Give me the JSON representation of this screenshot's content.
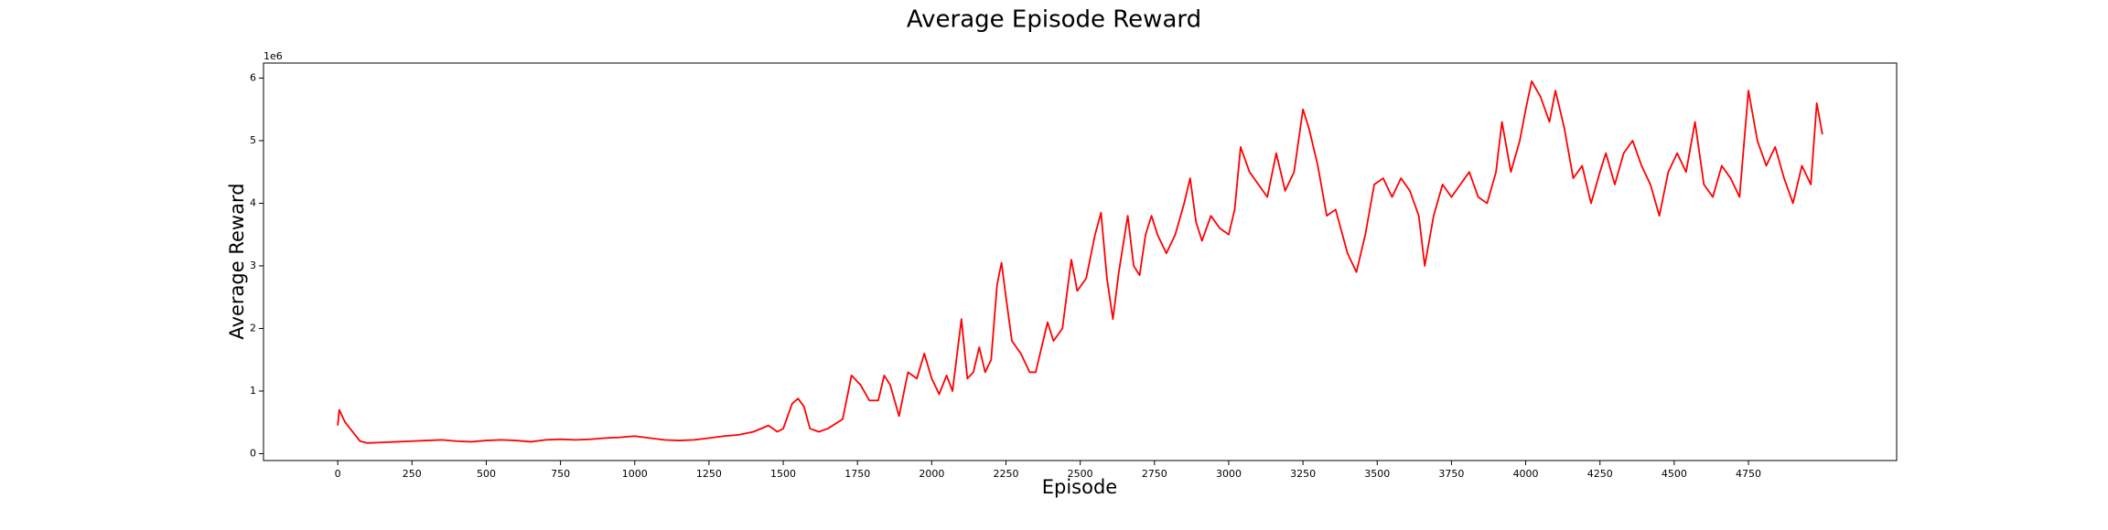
{
  "chart_data": {
    "type": "line",
    "title": "Average Episode Reward",
    "x_label": "Episode",
    "y_label": "Average Reward",
    "y_offset_label": "1e6",
    "xlim": [
      -250,
      5249
    ],
    "ylim": [
      -0.11,
      6.24
    ],
    "xticks": [
      0,
      250,
      500,
      750,
      1000,
      1250,
      1500,
      1750,
      2000,
      2250,
      2500,
      2750,
      3000,
      3250,
      3500,
      3750,
      4000,
      4250,
      4500,
      4750
    ],
    "yticks": [
      0,
      1,
      2,
      3,
      4,
      5,
      6
    ],
    "grid": false,
    "series": [
      {
        "color": "#ff0000",
        "x": [
          0,
          5,
          25,
          50,
          75,
          100,
          150,
          200,
          250,
          300,
          350,
          400,
          450,
          500,
          550,
          600,
          650,
          700,
          750,
          800,
          850,
          900,
          950,
          1000,
          1050,
          1100,
          1150,
          1200,
          1250,
          1300,
          1350,
          1400,
          1450,
          1480,
          1500,
          1530,
          1550,
          1570,
          1590,
          1620,
          1650,
          1700,
          1730,
          1760,
          1790,
          1820,
          1840,
          1860,
          1890,
          1920,
          1950,
          1975,
          2000,
          2025,
          2050,
          2070,
          2100,
          2120,
          2140,
          2160,
          2180,
          2200,
          2220,
          2235,
          2250,
          2270,
          2300,
          2330,
          2350,
          2370,
          2390,
          2410,
          2440,
          2470,
          2490,
          2520,
          2550,
          2570,
          2590,
          2610,
          2630,
          2660,
          2680,
          2700,
          2720,
          2740,
          2760,
          2790,
          2820,
          2850,
          2870,
          2890,
          2910,
          2940,
          2970,
          3000,
          3020,
          3040,
          3070,
          3100,
          3130,
          3160,
          3190,
          3220,
          3250,
          3270,
          3300,
          3330,
          3360,
          3400,
          3430,
          3460,
          3490,
          3520,
          3550,
          3580,
          3610,
          3640,
          3660,
          3690,
          3720,
          3750,
          3780,
          3810,
          3840,
          3870,
          3900,
          3920,
          3950,
          3980,
          4000,
          4020,
          4050,
          4080,
          4100,
          4130,
          4160,
          4190,
          4220,
          4250,
          4270,
          4300,
          4330,
          4360,
          4390,
          4420,
          4450,
          4480,
          4510,
          4540,
          4570,
          4600,
          4630,
          4660,
          4690,
          4720,
          4750,
          4780,
          4810,
          4840,
          4870,
          4900,
          4930,
          4960,
          4980,
          4999
        ],
        "values": [
          0.45,
          0.7,
          0.5,
          0.35,
          0.2,
          0.17,
          0.18,
          0.19,
          0.2,
          0.21,
          0.22,
          0.2,
          0.19,
          0.21,
          0.22,
          0.21,
          0.19,
          0.22,
          0.23,
          0.22,
          0.23,
          0.25,
          0.26,
          0.28,
          0.25,
          0.22,
          0.21,
          0.22,
          0.25,
          0.28,
          0.3,
          0.35,
          0.45,
          0.35,
          0.4,
          0.8,
          0.88,
          0.75,
          0.4,
          0.35,
          0.4,
          0.55,
          1.25,
          1.1,
          0.85,
          0.85,
          1.25,
          1.1,
          0.6,
          1.3,
          1.2,
          1.6,
          1.2,
          0.95,
          1.25,
          1.0,
          2.15,
          1.2,
          1.3,
          1.7,
          1.3,
          1.5,
          2.7,
          3.05,
          2.5,
          1.8,
          1.6,
          1.3,
          1.3,
          1.7,
          2.1,
          1.8,
          2.0,
          3.1,
          2.6,
          2.8,
          3.5,
          3.85,
          2.8,
          2.15,
          2.9,
          3.8,
          3.0,
          2.85,
          3.5,
          3.8,
          3.5,
          3.2,
          3.5,
          4.0,
          4.4,
          3.7,
          3.4,
          3.8,
          3.6,
          3.5,
          3.9,
          4.9,
          4.5,
          4.3,
          4.1,
          4.8,
          4.2,
          4.5,
          5.5,
          5.2,
          4.6,
          3.8,
          3.9,
          3.2,
          2.9,
          3.5,
          4.3,
          4.4,
          4.1,
          4.4,
          4.2,
          3.8,
          3.0,
          3.8,
          4.3,
          4.1,
          4.3,
          4.5,
          4.1,
          4.0,
          4.5,
          5.3,
          4.5,
          5.0,
          5.5,
          5.95,
          5.7,
          5.3,
          5.8,
          5.2,
          4.4,
          4.6,
          4.0,
          4.5,
          4.8,
          4.3,
          4.8,
          5.0,
          4.6,
          4.3,
          3.8,
          4.5,
          4.8,
          4.5,
          5.3,
          4.3,
          4.1,
          4.6,
          4.4,
          4.1,
          5.8,
          5.0,
          4.6,
          4.9,
          4.4,
          4.0,
          4.6,
          4.3,
          5.6,
          5.1
        ]
      }
    ]
  }
}
